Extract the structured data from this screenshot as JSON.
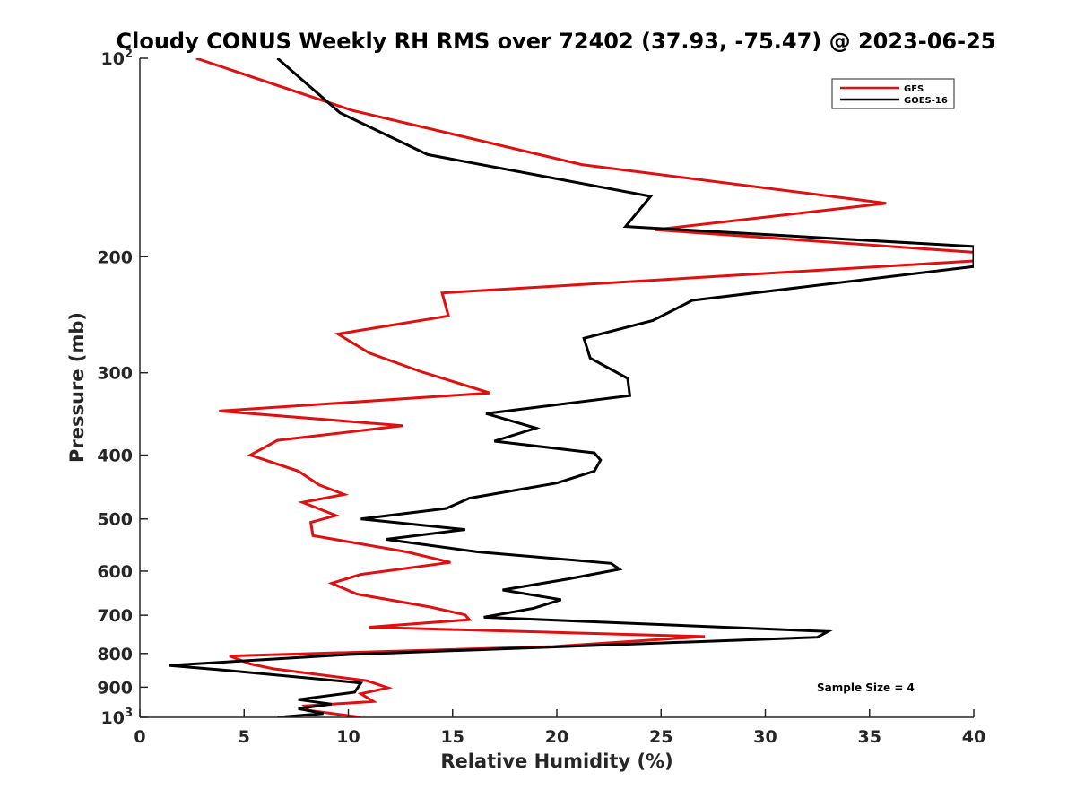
{
  "chart_data": {
    "type": "line",
    "title": "Cloudy CONUS Weekly RH RMS over 72402 (37.93, -75.47) @ 2023-06-25",
    "xlabel": "Relative Humidity (%)",
    "ylabel": "Pressure (mb)",
    "xlim": [
      0,
      40
    ],
    "ylim": [
      100,
      1000
    ],
    "y_scale": "log",
    "y_reversed": true,
    "grid": false,
    "legend_position": "top-right",
    "x_ticks": [
      "0",
      "5",
      "10",
      "15",
      "20",
      "25",
      "30",
      "35",
      "40"
    ],
    "y_ticks": [
      {
        "value": 100,
        "base": "10",
        "exp": "2"
      },
      {
        "value": 200,
        "base": "200",
        "exp": ""
      },
      {
        "value": 300,
        "base": "300",
        "exp": ""
      },
      {
        "value": 400,
        "base": "400",
        "exp": ""
      },
      {
        "value": 500,
        "base": "500",
        "exp": ""
      },
      {
        "value": 600,
        "base": "600",
        "exp": ""
      },
      {
        "value": 700,
        "base": "700",
        "exp": ""
      },
      {
        "value": 800,
        "base": "800",
        "exp": ""
      },
      {
        "value": 900,
        "base": "900",
        "exp": ""
      },
      {
        "value": 1000,
        "base": "10",
        "exp": "3"
      }
    ],
    "annotation": "Sample Size = 4",
    "series": [
      {
        "name": "GFS",
        "color": "#e01010",
        "points": [
          [
            2.7,
            100
          ],
          [
            10.2,
            120
          ],
          [
            21.2,
            145
          ],
          [
            35.8,
            166
          ],
          [
            24.7,
            182
          ],
          [
            40,
            197
          ],
          [
            40,
            203
          ],
          [
            14.5,
            227
          ],
          [
            14.8,
            246
          ],
          [
            9.5,
            262
          ],
          [
            11.0,
            280
          ],
          [
            13.5,
            299
          ],
          [
            16.8,
            322
          ],
          [
            3.8,
            343
          ],
          [
            12.6,
            361
          ],
          [
            6.6,
            380
          ],
          [
            5.3,
            400
          ],
          [
            7.6,
            423
          ],
          [
            8.6,
            444
          ],
          [
            9.8,
            459
          ],
          [
            7.8,
            472
          ],
          [
            9.4,
            494
          ],
          [
            8.2,
            506
          ],
          [
            8.3,
            530
          ],
          [
            12.8,
            561
          ],
          [
            14.9,
            582
          ],
          [
            10.6,
            607
          ],
          [
            9.2,
            626
          ],
          [
            10.4,
            650
          ],
          [
            13.9,
            680
          ],
          [
            15.6,
            699
          ],
          [
            15.8,
            711
          ],
          [
            11.0,
            730
          ],
          [
            27.1,
            754
          ],
          [
            19.8,
            781
          ],
          [
            4.3,
            807
          ],
          [
            5.3,
            830
          ],
          [
            6.4,
            844
          ],
          [
            10.9,
            880
          ],
          [
            11.9,
            902
          ],
          [
            10.6,
            921
          ],
          [
            11.2,
            946
          ],
          [
            7.9,
            961
          ],
          [
            8.1,
            976
          ],
          [
            10.6,
            1000
          ]
        ]
      },
      {
        "name": "GOES-16",
        "color": "#000000",
        "points": [
          [
            6.6,
            100
          ],
          [
            9.6,
            121
          ],
          [
            13.8,
            140
          ],
          [
            24.5,
            162
          ],
          [
            23.3,
            180
          ],
          [
            40,
            193
          ],
          [
            40,
            207
          ],
          [
            26.5,
            233
          ],
          [
            24.6,
            250
          ],
          [
            21.3,
            266
          ],
          [
            21.6,
            285
          ],
          [
            23.4,
            306
          ],
          [
            23.5,
            325
          ],
          [
            16.6,
            346
          ],
          [
            19.0,
            364
          ],
          [
            17.0,
            381
          ],
          [
            21.8,
            397
          ],
          [
            22.1,
            407
          ],
          [
            21.8,
            423
          ],
          [
            20.0,
            441
          ],
          [
            15.8,
            465
          ],
          [
            14.7,
            482
          ],
          [
            10.6,
            500
          ],
          [
            15.6,
            519
          ],
          [
            11.8,
            537
          ],
          [
            16.2,
            561
          ],
          [
            22.6,
            584
          ],
          [
            23.0,
            596
          ],
          [
            20.5,
            617
          ],
          [
            17.4,
            641
          ],
          [
            20.2,
            663
          ],
          [
            18.9,
            683
          ],
          [
            16.5,
            705
          ],
          [
            33.0,
            741
          ],
          [
            32.5,
            756
          ],
          [
            10.0,
            803
          ],
          [
            1.4,
            834
          ],
          [
            4.2,
            849
          ],
          [
            10.6,
            887
          ],
          [
            10.3,
            916
          ],
          [
            7.6,
            940
          ],
          [
            9.2,
            955
          ],
          [
            7.6,
            970
          ],
          [
            8.8,
            987
          ],
          [
            6.6,
            1000
          ]
        ]
      }
    ]
  }
}
